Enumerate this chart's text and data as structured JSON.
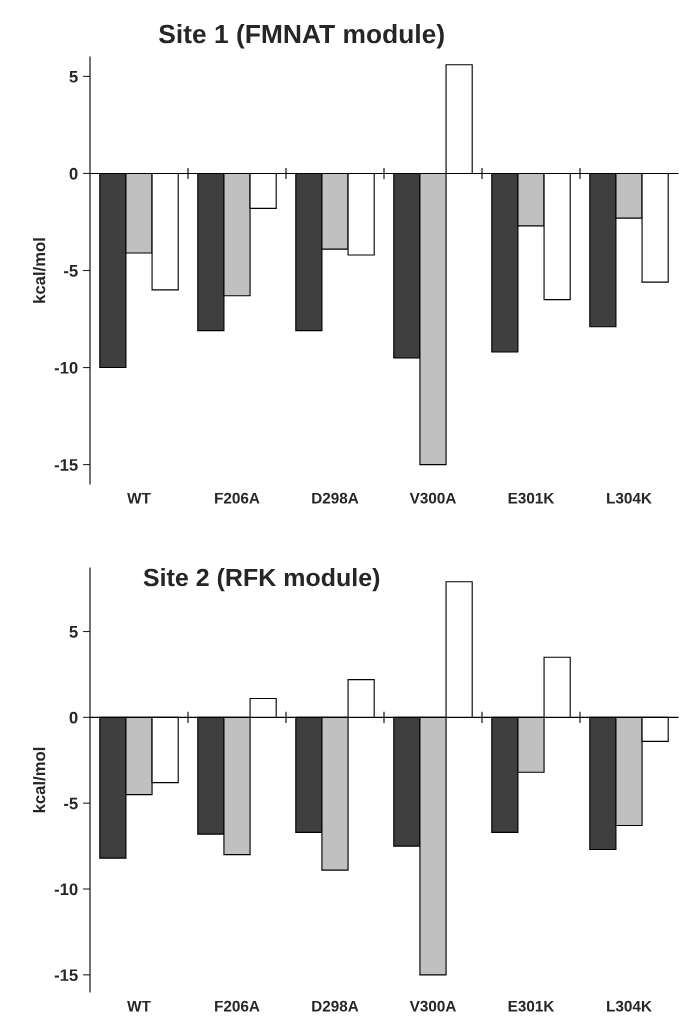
{
  "chart_data": [
    {
      "type": "bar",
      "title": "Site 1 (FMNAT module)",
      "ylabel": "kcal/mol",
      "categories": [
        "WT",
        "F206A",
        "D298A",
        "V300A",
        "E301K",
        "L304K"
      ],
      "series": [
        {
          "color": "#3f3f3f",
          "values": [
            -10.0,
            -8.1,
            -8.1,
            -9.5,
            -9.2,
            -7.9
          ]
        },
        {
          "color": "#c0c0c0",
          "values": [
            -4.1,
            -6.3,
            -3.9,
            -15.0,
            -2.7,
            -2.3
          ]
        },
        {
          "color": "#ffffff",
          "values": [
            -6.0,
            -1.8,
            -4.2,
            5.6,
            -6.5,
            -5.6
          ]
        }
      ],
      "ylim": [
        -16,
        6
      ],
      "yticks": [
        5,
        0,
        -5,
        -10,
        -15
      ],
      "legend": false
    },
    {
      "type": "bar",
      "title": "Site 2 (RFK module)",
      "ylabel": "kcal/mol",
      "categories": [
        "WT",
        "F206A",
        "D298A",
        "V300A",
        "E301K",
        "L304K"
      ],
      "series": [
        {
          "color": "#3f3f3f",
          "values": [
            -8.2,
            -6.8,
            -6.7,
            -7.5,
            -6.7,
            -7.7
          ]
        },
        {
          "color": "#c0c0c0",
          "values": [
            -4.5,
            -8.0,
            -8.9,
            -15.0,
            -3.2,
            -6.3
          ]
        },
        {
          "color": "#ffffff",
          "values": [
            -3.8,
            1.1,
            2.2,
            7.9,
            3.5,
            -1.4
          ]
        }
      ],
      "ylim": [
        -16,
        8.7
      ],
      "yticks": [
        5,
        0,
        -5,
        -10,
        -15
      ],
      "legend": false
    }
  ]
}
